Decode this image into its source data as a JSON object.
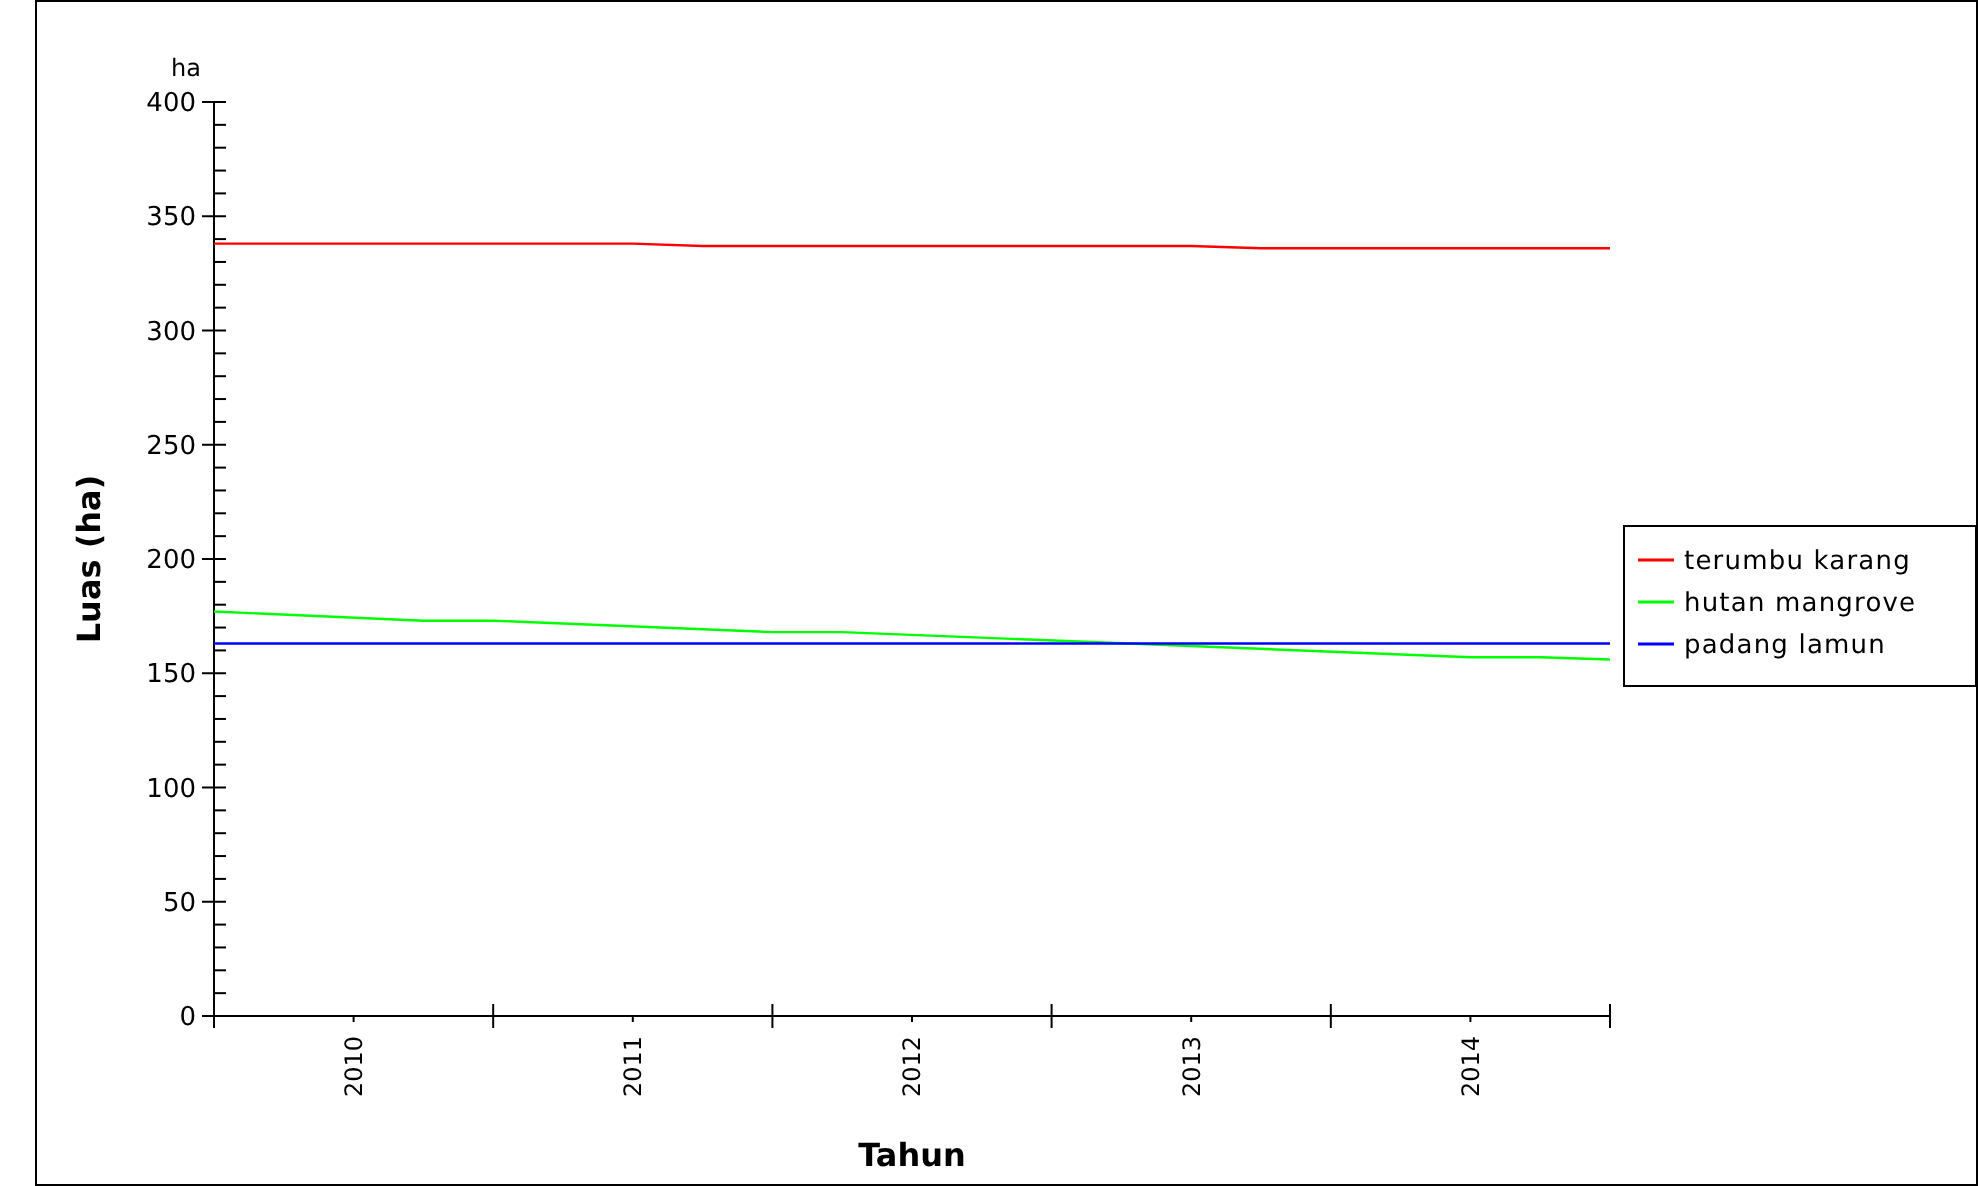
{
  "chart_data": {
    "type": "line",
    "xlabel": "Tahun",
    "ylabel": "Luas (ha)",
    "annotations": [
      "ha"
    ],
    "xlim": [
      2009.5,
      2014.5
    ],
    "xticks": [
      {
        "value": 2009.5,
        "label": null
      },
      {
        "value": 2010,
        "label": "2010"
      },
      {
        "value": 2010.5,
        "label": null
      },
      {
        "value": 2011,
        "label": "2011"
      },
      {
        "value": 2011.5,
        "label": null
      },
      {
        "value": 2012,
        "label": "2012"
      },
      {
        "value": 2012.5,
        "label": null
      },
      {
        "value": 2013,
        "label": "2013"
      },
      {
        "value": 2013.5,
        "label": null
      },
      {
        "value": 2014,
        "label": "2014"
      },
      {
        "value": 2014.5,
        "label": null
      }
    ],
    "ylim": [
      0,
      400
    ],
    "yticks": [
      0,
      {
        "value": 10,
        "label": null
      },
      {
        "value": 20,
        "label": null
      },
      {
        "value": 30,
        "label": null
      },
      {
        "value": 40,
        "label": null
      },
      50,
      {
        "value": 60,
        "label": null
      },
      {
        "value": 70,
        "label": null
      },
      {
        "value": 80,
        "label": null
      },
      {
        "value": 90,
        "label": null
      },
      100,
      {
        "value": 110,
        "label": null
      },
      {
        "value": 120,
        "label": null
      },
      {
        "value": 130,
        "label": null
      },
      {
        "value": 140,
        "label": null
      },
      150,
      {
        "value": 160,
        "label": null
      },
      {
        "value": 170,
        "label": null
      },
      {
        "value": 180,
        "label": null
      },
      {
        "value": 190,
        "label": null
      },
      200,
      {
        "value": 210,
        "label": null
      },
      {
        "value": 220,
        "label": null
      },
      {
        "value": 230,
        "label": null
      },
      {
        "value": 240,
        "label": null
      },
      250,
      {
        "value": 260,
        "label": null
      },
      {
        "value": 270,
        "label": null
      },
      {
        "value": 280,
        "label": null
      },
      {
        "value": 290,
        "label": null
      },
      300,
      {
        "value": 310,
        "label": null
      },
      {
        "value": 320,
        "label": null
      },
      {
        "value": 330,
        "label": null
      },
      {
        "value": 340,
        "label": null
      },
      350,
      {
        "value": 360,
        "label": null
      },
      {
        "value": 370,
        "label": null
      },
      {
        "value": 380,
        "label": null
      },
      {
        "value": 390,
        "label": null
      },
      400
    ],
    "legend": "right",
    "grid": false,
    "marker": "none",
    "line_style": "solid",
    "series": [
      {
        "name": "terumbu karang",
        "color": "#ff0000",
        "x": [
          2009.5,
          2011,
          2011.25,
          2013,
          2013.25,
          2014.5
        ],
        "values": [
          338,
          338,
          337,
          337,
          336,
          336
        ]
      },
      {
        "name": "hutan mangrove",
        "color": "#00ff00",
        "x": [
          2009.5,
          2010.25,
          2010.5,
          2011.5,
          2011.75,
          2014,
          2014.25,
          2014.5
        ],
        "values": [
          177,
          173,
          173,
          168,
          168,
          157,
          157,
          156
        ]
      },
      {
        "name": "padang lamun",
        "color": "#0000ff",
        "x": [
          2009.5,
          2014.5
        ],
        "values": [
          163,
          163
        ]
      }
    ]
  }
}
